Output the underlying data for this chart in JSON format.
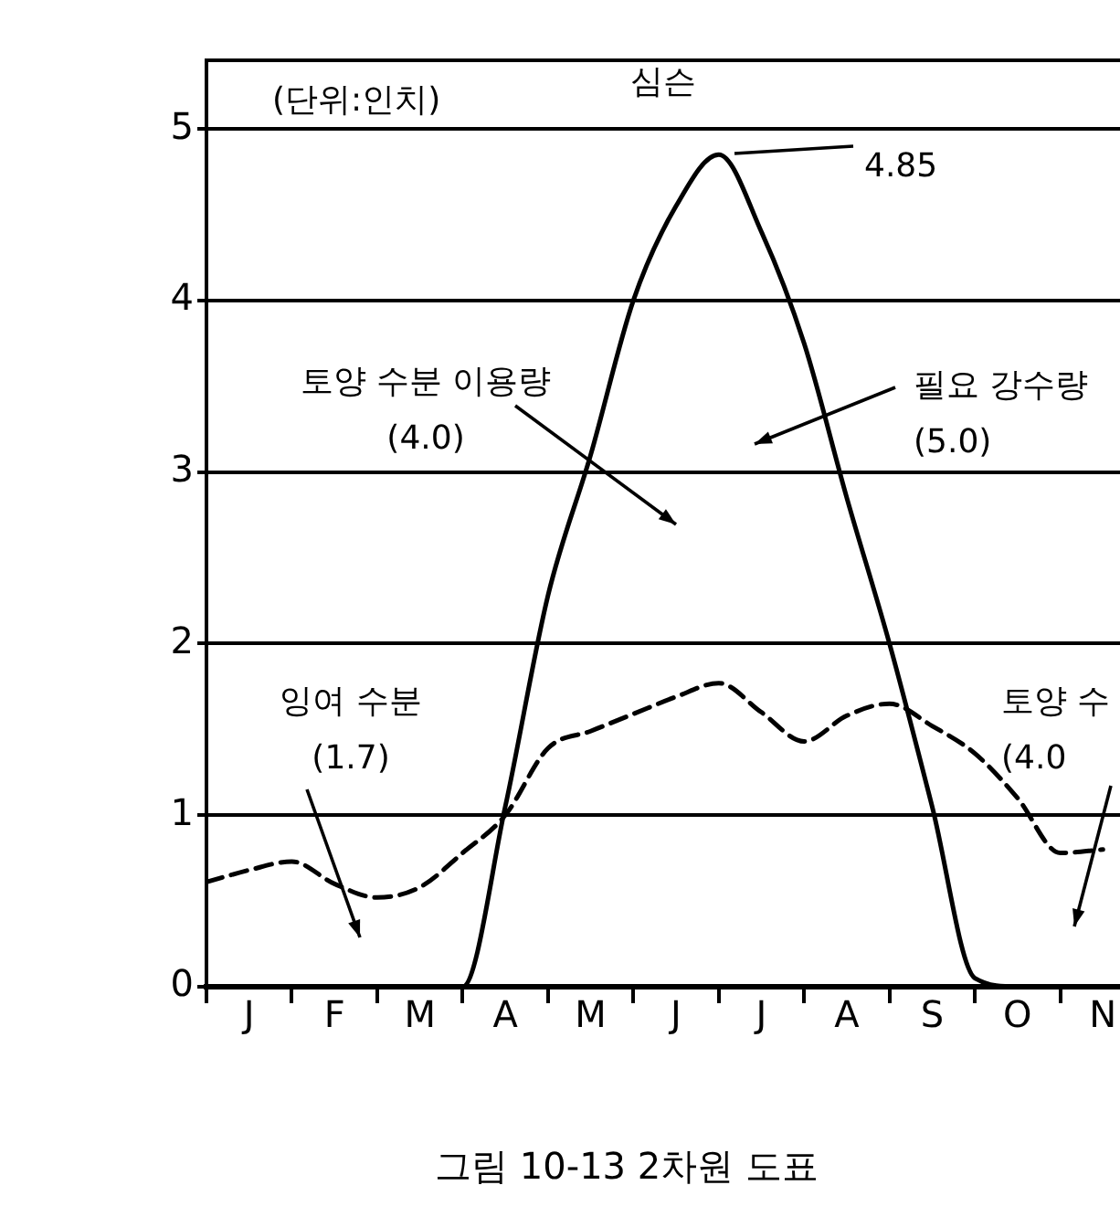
{
  "chart_data": {
    "type": "line",
    "title": "심슨",
    "ylabel": "(단위:인치)",
    "categories": [
      null,
      "J",
      null,
      "F",
      null,
      "M",
      null,
      "A",
      null,
      "M",
      null,
      "J",
      null,
      "J",
      null,
      "A",
      null,
      "S",
      null,
      "O",
      null,
      "N"
    ],
    "ylim": [
      0,
      5.4
    ],
    "yticks": [
      0,
      1,
      2,
      3,
      4,
      5
    ],
    "grid": "y",
    "marker": "none",
    "series": [
      {
        "color": "#000000",
        "line_style": "solid",
        "values": [
          0,
          0,
          0,
          0,
          0,
          0,
          0,
          1.05,
          2.28,
          3.1,
          4,
          4.55,
          4.85,
          4.4,
          3.75,
          2.85,
          2,
          1.05,
          0.05,
          0,
          0,
          0
        ]
      },
      {
        "color": "#000000",
        "line_style": "dashed",
        "values": [
          0.61,
          0.68,
          0.73,
          0.6,
          0.52,
          0.58,
          0.78,
          1,
          1.39,
          1.49,
          1.59,
          1.69,
          1.77,
          1.6,
          1.43,
          1.58,
          1.65,
          1.52,
          1.36,
          1.1,
          0.78,
          0.8
        ]
      }
    ],
    "annotations": [
      "4.85",
      "토양 수분 이용량\n(4.0)",
      "필요 강수량\n(5.0)",
      "잉여 수분\n(1.7)",
      "토양 수\n(4.0",
      "그림 10-13 2차원 도표"
    ]
  }
}
